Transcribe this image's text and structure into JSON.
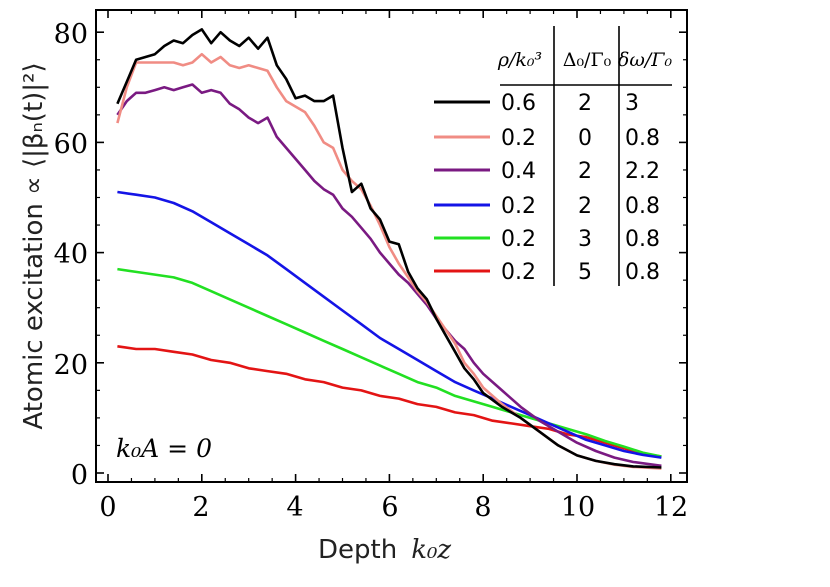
{
  "chart_data": {
    "type": "line",
    "title": "",
    "xlabel": "Depth",
    "xlabel_math": "k₀z",
    "ylabel": "Atomic excitation ∝ ⟨|βₙ(t)|²⟩",
    "xlim": [
      0,
      12
    ],
    "ylim": [
      0,
      84
    ],
    "xticks": [
      0,
      2,
      4,
      6,
      8,
      10,
      12
    ],
    "yticks": [
      0,
      20,
      40,
      60,
      80
    ],
    "grid": false,
    "annotation": "k₀A = 0",
    "legend": {
      "placement": "top-right",
      "headers": [
        "ρ/k₀³",
        "Δ₀/Γ₀",
        "δω/Γ₀"
      ],
      "rows": [
        [
          "0.6",
          "2",
          "3"
        ],
        [
          "0.2",
          "0",
          "0.8"
        ],
        [
          "0.4",
          "2",
          "2.2"
        ],
        [
          "0.2",
          "2",
          "0.8"
        ],
        [
          "0.2",
          "3",
          "0.8"
        ],
        [
          "0.2",
          "5",
          "0.8"
        ]
      ]
    },
    "series": [
      {
        "name": "rho=0.6, Delta0=2, dw=3",
        "color": "#000000",
        "x": [
          0.2,
          0.4,
          0.6,
          0.8,
          1.0,
          1.2,
          1.4,
          1.6,
          1.8,
          2.0,
          2.2,
          2.4,
          2.6,
          2.8,
          3.0,
          3.2,
          3.4,
          3.6,
          3.8,
          4.0,
          4.2,
          4.4,
          4.6,
          4.8,
          5.0,
          5.2,
          5.4,
          5.6,
          5.8,
          6.0,
          6.2,
          6.4,
          6.6,
          6.8,
          7.0,
          7.2,
          7.4,
          7.6,
          7.8,
          8.0,
          8.4,
          8.8,
          9.2,
          9.6,
          10.0,
          10.4,
          10.8,
          11.2,
          11.8
        ],
        "y": [
          67,
          71,
          75,
          75.5,
          76,
          77.5,
          78.5,
          78,
          79.5,
          80.5,
          78,
          80,
          78.5,
          77.5,
          79,
          77,
          79,
          74,
          71.5,
          68,
          68.5,
          67.5,
          67.5,
          68.5,
          59,
          51,
          52.5,
          48,
          46,
          42,
          41.5,
          36.5,
          33.5,
          31.5,
          28,
          25,
          22,
          19,
          17,
          14.5,
          12,
          10,
          7.5,
          5,
          3.2,
          2.2,
          1.6,
          1.2,
          1
        ]
      },
      {
        "name": "rho=0.2, Delta0=0, dw=0.8",
        "color": "#f08c84",
        "x": [
          0.2,
          0.4,
          0.6,
          0.8,
          1.0,
          1.2,
          1.4,
          1.6,
          1.8,
          2.0,
          2.2,
          2.4,
          2.6,
          2.8,
          3.0,
          3.2,
          3.4,
          3.6,
          3.8,
          4.0,
          4.2,
          4.4,
          4.6,
          4.8,
          5.0,
          5.2,
          5.4,
          5.6,
          5.8,
          6.0,
          6.2,
          6.4,
          6.6,
          6.8,
          7.0,
          7.2,
          7.4,
          7.6,
          7.8,
          8.0,
          8.4,
          8.8,
          9.2,
          9.6,
          10.0,
          10.4,
          10.8,
          11.2,
          11.8
        ],
        "y": [
          63.5,
          70,
          74.5,
          74.5,
          74.5,
          74.5,
          74.5,
          74,
          74.5,
          76,
          74.5,
          75.5,
          74,
          73.5,
          74,
          73.5,
          73,
          70,
          67.5,
          66.5,
          65.5,
          63,
          60,
          59,
          55,
          53,
          51.5,
          48.5,
          45,
          41,
          38,
          35.5,
          33,
          31,
          28.5,
          26,
          23.5,
          20,
          18,
          15.5,
          12.5,
          10,
          7.5,
          5,
          3.2,
          2.2,
          1.5,
          1.1,
          0.8
        ]
      },
      {
        "name": "rho=0.4, Delta0=2, dw=2.2",
        "color": "#7a1a82",
        "x": [
          0.2,
          0.4,
          0.6,
          0.8,
          1.0,
          1.2,
          1.4,
          1.6,
          1.8,
          2.0,
          2.2,
          2.4,
          2.6,
          2.8,
          3.0,
          3.2,
          3.4,
          3.6,
          3.8,
          4.0,
          4.2,
          4.4,
          4.6,
          4.8,
          5.0,
          5.2,
          5.4,
          5.6,
          5.8,
          6.0,
          6.2,
          6.4,
          6.6,
          6.8,
          7.0,
          7.2,
          7.4,
          7.6,
          7.8,
          8.0,
          8.4,
          8.8,
          9.2,
          9.6,
          10.0,
          10.4,
          10.8,
          11.2,
          11.8
        ],
        "y": [
          65,
          67.5,
          69,
          69,
          69.5,
          70,
          69.5,
          70,
          70.5,
          69,
          69.5,
          69,
          67,
          66,
          64.5,
          63.5,
          64.5,
          61,
          59,
          57,
          55,
          53,
          51.5,
          50.5,
          48,
          46.5,
          44.5,
          42.5,
          40,
          38,
          36,
          34.5,
          32.5,
          30.5,
          28,
          26,
          24,
          22.5,
          20,
          18,
          15,
          12,
          9.5,
          7.5,
          5.5,
          4,
          2.8,
          2,
          1.3
        ]
      },
      {
        "name": "rho=0.2, Delta0=2, dw=0.8",
        "color": "#1414e6",
        "x": [
          0.2,
          0.6,
          1.0,
          1.4,
          1.8,
          2.2,
          2.6,
          3.0,
          3.4,
          3.8,
          4.2,
          4.6,
          5.0,
          5.4,
          5.8,
          6.2,
          6.6,
          7.0,
          7.4,
          7.8,
          8.2,
          8.6,
          9.0,
          9.4,
          9.8,
          10.2,
          10.6,
          11.0,
          11.4,
          11.8
        ],
        "y": [
          51,
          50.5,
          50,
          49,
          47.5,
          45.5,
          43.5,
          41.5,
          39.5,
          37,
          34.5,
          32,
          29.5,
          27,
          24.5,
          22.5,
          20.5,
          18.5,
          16.5,
          15,
          13.5,
          12,
          10.5,
          9,
          7.5,
          6,
          5,
          4,
          3.3,
          2.8
        ]
      },
      {
        "name": "rho=0.2, Delta0=3, dw=0.8",
        "color": "#22e022",
        "x": [
          0.2,
          0.6,
          1.0,
          1.4,
          1.8,
          2.2,
          2.6,
          3.0,
          3.4,
          3.8,
          4.2,
          4.6,
          5.0,
          5.4,
          5.8,
          6.2,
          6.6,
          7.0,
          7.4,
          7.8,
          8.2,
          8.6,
          9.0,
          9.4,
          9.8,
          10.2,
          10.6,
          11.0,
          11.4,
          11.8
        ],
        "y": [
          37,
          36.5,
          36,
          35.5,
          34.5,
          33,
          31.5,
          30,
          28.5,
          27,
          25.5,
          24,
          22.5,
          21,
          19.5,
          18,
          16.5,
          15.5,
          14,
          13,
          12,
          11,
          10,
          9,
          8,
          7,
          5.8,
          4.8,
          3.7,
          3
        ]
      },
      {
        "name": "rho=0.2, Delta0=5, dw=0.8",
        "color": "#e31414",
        "x": [
          0.2,
          0.6,
          1.0,
          1.4,
          1.8,
          2.2,
          2.6,
          3.0,
          3.4,
          3.8,
          4.2,
          4.6,
          5.0,
          5.4,
          5.8,
          6.2,
          6.6,
          7.0,
          7.4,
          7.8,
          8.2,
          8.6,
          9.0,
          9.4,
          9.8,
          10.2,
          10.6,
          11.0,
          11.4,
          11.8
        ],
        "y": [
          23,
          22.5,
          22.5,
          22,
          21.5,
          20.5,
          20,
          19,
          18.5,
          18,
          17,
          16.5,
          15.5,
          15,
          14,
          13.5,
          12.5,
          12,
          11,
          10.5,
          9.5,
          9,
          8.5,
          8,
          7,
          6.5,
          5.5,
          4.5,
          3.5,
          3
        ]
      }
    ]
  }
}
